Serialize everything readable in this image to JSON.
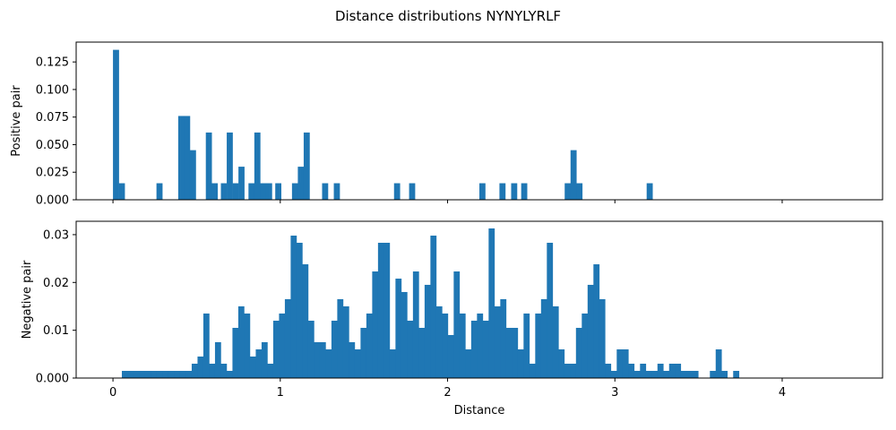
{
  "figure_title": "Distance distributions NYNYLYRLF",
  "bar_color": "#1f77b4",
  "chart_data": [
    {
      "type": "bar",
      "title": "",
      "xlabel": "",
      "ylabel": "Positive pair",
      "bin_width": 0.0348,
      "xlim": [
        -0.22,
        4.6
      ],
      "ylim": [
        0,
        0.143
      ],
      "xticks": [
        0,
        1,
        2,
        3,
        4
      ],
      "xtick_labels": [
        "",
        "",
        "",
        "",
        ""
      ],
      "yticks": [
        0,
        0.025,
        0.05,
        0.075,
        0.1,
        0.125
      ],
      "ytick_labels": [
        "0.000",
        "0.025",
        "0.050",
        "0.075",
        "0.100",
        "0.125"
      ],
      "bins": [
        {
          "x": 0.0,
          "y": 0.136
        },
        {
          "x": 0.035,
          "y": 0.015
        },
        {
          "x": 0.26,
          "y": 0.015
        },
        {
          "x": 0.39,
          "y": 0.076
        },
        {
          "x": 0.425,
          "y": 0.076
        },
        {
          "x": 0.46,
          "y": 0.045
        },
        {
          "x": 0.555,
          "y": 0.061
        },
        {
          "x": 0.59,
          "y": 0.015
        },
        {
          "x": 0.645,
          "y": 0.015
        },
        {
          "x": 0.68,
          "y": 0.061
        },
        {
          "x": 0.715,
          "y": 0.015
        },
        {
          "x": 0.75,
          "y": 0.03
        },
        {
          "x": 0.81,
          "y": 0.015
        },
        {
          "x": 0.845,
          "y": 0.061
        },
        {
          "x": 0.88,
          "y": 0.015
        },
        {
          "x": 0.915,
          "y": 0.015
        },
        {
          "x": 0.97,
          "y": 0.015
        },
        {
          "x": 1.07,
          "y": 0.015
        },
        {
          "x": 1.105,
          "y": 0.03
        },
        {
          "x": 1.14,
          "y": 0.061
        },
        {
          "x": 1.25,
          "y": 0.015
        },
        {
          "x": 1.32,
          "y": 0.015
        },
        {
          "x": 1.68,
          "y": 0.015
        },
        {
          "x": 1.77,
          "y": 0.015
        },
        {
          "x": 2.19,
          "y": 0.015
        },
        {
          "x": 2.31,
          "y": 0.015
        },
        {
          "x": 2.38,
          "y": 0.015
        },
        {
          "x": 2.44,
          "y": 0.015
        },
        {
          "x": 2.7,
          "y": 0.015
        },
        {
          "x": 2.735,
          "y": 0.045
        },
        {
          "x": 2.77,
          "y": 0.015
        },
        {
          "x": 3.19,
          "y": 0.015
        }
      ]
    },
    {
      "type": "bar",
      "title": "",
      "xlabel": "Distance",
      "ylabel": "Negative pair",
      "bin_width": 0.0348,
      "xlim": [
        -0.22,
        4.6
      ],
      "ylim": [
        0,
        0.0328
      ],
      "xticks": [
        0,
        1,
        2,
        3,
        4
      ],
      "xtick_labels": [
        "0",
        "1",
        "2",
        "3",
        "4"
      ],
      "yticks": [
        0,
        0.01,
        0.02,
        0.03
      ],
      "ytick_labels": [
        "0.000",
        "0.01",
        "0.02",
        "0.03"
      ],
      "x_start": 0.053,
      "values": [
        0.0015,
        0.0015,
        0.0015,
        0.0015,
        0.0015,
        0.0015,
        0.0015,
        0.0015,
        0.0015,
        0.0015,
        0.0015,
        0.0015,
        0.003,
        0.0045,
        0.0135,
        0.003,
        0.0075,
        0.003,
        0.0015,
        0.0105,
        0.015,
        0.0135,
        0.0045,
        0.006,
        0.0075,
        0.003,
        0.012,
        0.0135,
        0.0165,
        0.0298,
        0.0283,
        0.0238,
        0.012,
        0.0075,
        0.0075,
        0.006,
        0.012,
        0.0165,
        0.015,
        0.0075,
        0.006,
        0.0105,
        0.0135,
        0.0223,
        0.0283,
        0.0283,
        0.006,
        0.0208,
        0.018,
        0.012,
        0.0223,
        0.0105,
        0.0195,
        0.0298,
        0.015,
        0.0135,
        0.009,
        0.0223,
        0.0135,
        0.006,
        0.012,
        0.0135,
        0.012,
        0.0313,
        0.015,
        0.0165,
        0.0105,
        0.0105,
        0.006,
        0.0135,
        0.003,
        0.0135,
        0.0165,
        0.0283,
        0.015,
        0.006,
        0.003,
        0.003,
        0.0105,
        0.0135,
        0.0195,
        0.0238,
        0.0165,
        0.003,
        0.0015,
        0.006,
        0.006,
        0.003,
        0.0015,
        0.003,
        0.0015,
        0.0015,
        0.003,
        0.0015,
        0.003,
        0.003,
        0.0015,
        0.0015,
        0.0015,
        0,
        0,
        0.0015,
        0.006,
        0.0015,
        0,
        0.0015
      ]
    }
  ]
}
